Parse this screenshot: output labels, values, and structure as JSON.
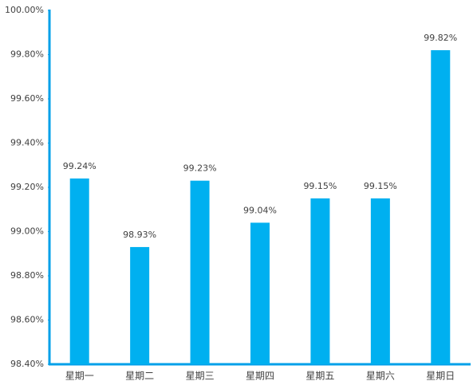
{
  "chart_data": {
    "type": "bar",
    "categories": [
      "星期一",
      "星期二",
      "星期三",
      "星期四",
      "星期五",
      "星期六",
      "星期日"
    ],
    "values": [
      99.24,
      98.93,
      99.23,
      99.04,
      99.15,
      99.15,
      99.82
    ],
    "value_labels": [
      "99.24%",
      "98.93%",
      "99.23%",
      "99.04%",
      "99.15%",
      "99.15%",
      "99.82%"
    ],
    "color": "#00b0f0",
    "ylim": [
      98.4,
      100
    ],
    "yticks": [
      {
        "value": 98.4,
        "label": "98.40%"
      },
      {
        "value": 98.6,
        "label": "98.60%"
      },
      {
        "value": 98.8,
        "label": "98.80%"
      },
      {
        "value": 99.0,
        "label": "99.00%"
      },
      {
        "value": 99.2,
        "label": "99.20%"
      },
      {
        "value": 99.4,
        "label": "99.40%"
      },
      {
        "value": 99.6,
        "label": "99.60%"
      },
      {
        "value": 99.8,
        "label": "99.80%"
      },
      {
        "value": 100,
        "label": "100.00%"
      }
    ],
    "grid": false
  }
}
